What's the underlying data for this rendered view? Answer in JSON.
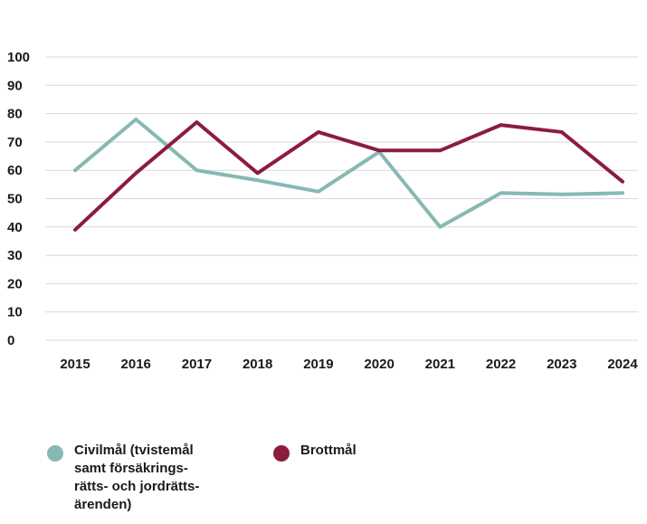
{
  "chart_data": {
    "type": "line",
    "title": "",
    "xlabel": "",
    "ylabel": "",
    "x": [
      "2015",
      "2016",
      "2017",
      "2018",
      "2019",
      "2020",
      "2021",
      "2022",
      "2023",
      "2024"
    ],
    "ylim": [
      0,
      100
    ],
    "yticks": [
      "0",
      "10",
      "20",
      "30",
      "40",
      "50",
      "60",
      "70",
      "80",
      "90",
      "100"
    ],
    "grid": true,
    "legend_position": "bottom",
    "series": [
      {
        "name": "Civilmål (tvistemål\nsamt försäkrings-\nrätts- och jordrätts-\närenden)",
        "color": "#86b9b4",
        "values": [
          60,
          78,
          60,
          56.5,
          52.5,
          66.5,
          40,
          52,
          51.5,
          52
        ]
      },
      {
        "name": "Brottmål",
        "color": "#8c1c3e",
        "values": [
          39,
          59,
          77,
          59,
          73.5,
          67,
          67,
          76,
          73.5,
          56
        ]
      }
    ]
  }
}
